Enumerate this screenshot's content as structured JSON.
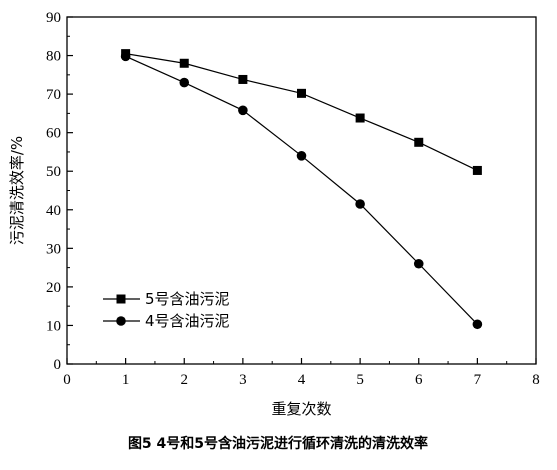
{
  "chart_data": {
    "type": "line",
    "x": [
      1,
      2,
      3,
      4,
      5,
      6,
      7
    ],
    "xlim": [
      0,
      8
    ],
    "ylim": [
      0,
      90
    ],
    "xticks": [
      0,
      1,
      2,
      3,
      4,
      5,
      6,
      7,
      8
    ],
    "yticks": [
      0,
      10,
      20,
      30,
      40,
      50,
      60,
      70,
      80,
      90
    ],
    "xlabel": "重复次数",
    "ylabel": "污泥清洗效率/%",
    "grid": false,
    "legend_position": "lower-left",
    "series": [
      {
        "name": "5号含油污泥",
        "marker": "square",
        "color": "#000000",
        "values": [
          80.5,
          78.0,
          73.8,
          70.2,
          63.8,
          57.5,
          50.2
        ]
      },
      {
        "name": "4号含油污泥",
        "marker": "circle",
        "color": "#000000",
        "values": [
          79.8,
          73.0,
          65.8,
          54.0,
          41.5,
          26.0,
          10.3
        ]
      }
    ]
  },
  "caption": "图5  4号和5号含油污泥进行循环清洗的清洗效率"
}
